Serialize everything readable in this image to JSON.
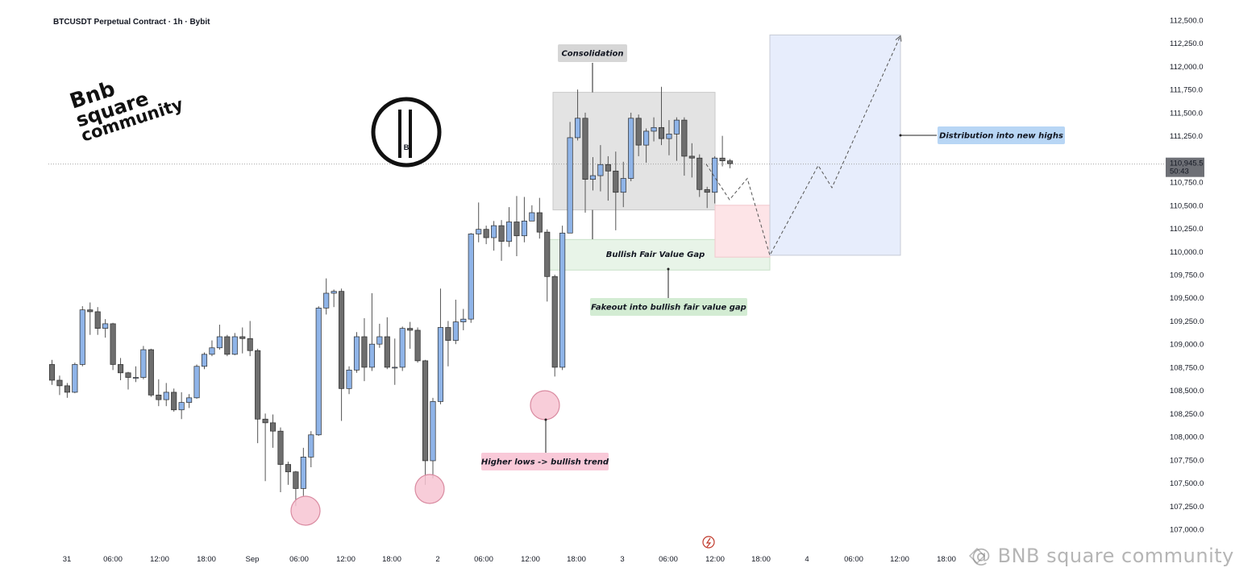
{
  "header": {
    "title": "BTCUSDT Perpetual Contract · 1h · Bybit"
  },
  "price_box": {
    "price": "110,945.5",
    "countdown": "50:43"
  },
  "watermark": "@ BNB square community",
  "logo": {
    "line1": "Bnb",
    "line2": "square",
    "line3": "community"
  },
  "chart_data": {
    "type": "candlestick",
    "ylim": [
      107000,
      112500
    ],
    "yticks": [
      "112,500.0",
      "112,250.0",
      "112,000.0",
      "111,750.0",
      "111,500.0",
      "111,250.0",
      "111,000.0",
      "110,750.0",
      "110,500.0",
      "110,250.0",
      "110,000.0",
      "109,750.0",
      "109,500.0",
      "109,250.0",
      "109,000.0",
      "108,750.0",
      "108,500.0",
      "108,250.0",
      "108,000.0",
      "107,750.0",
      "107,500.0",
      "107,250.0",
      "107,000.0"
    ],
    "xticks": [
      "31",
      "06:00",
      "12:00",
      "18:00",
      "Sep",
      "06:00",
      "12:00",
      "18:00",
      "2",
      "06:00",
      "12:00",
      "18:00",
      "3",
      "06:00",
      "12:00",
      "18:00",
      "4",
      "06:00",
      "12:00",
      "18:00"
    ],
    "candles": [
      [
        108780,
        108610,
        108830,
        108560
      ],
      [
        108610,
        108550,
        108660,
        108450
      ],
      [
        108550,
        108480,
        108580,
        108420
      ],
      [
        108480,
        108780,
        108800,
        108470
      ],
      [
        108780,
        109370,
        109410,
        108760
      ],
      [
        109370,
        109350,
        109450,
        109100
      ],
      [
        109350,
        109170,
        109400,
        109100
      ],
      [
        109170,
        109220,
        109270,
        109070
      ],
      [
        109220,
        108780,
        109230,
        108720
      ],
      [
        108780,
        108690,
        108850,
        108610
      ],
      [
        108690,
        108640,
        108700,
        108510
      ],
      [
        108640,
        108640,
        108760,
        108590
      ],
      [
        108640,
        108940,
        108980,
        108620
      ],
      [
        108940,
        108450,
        108950,
        108430
      ],
      [
        108450,
        108400,
        108620,
        108330
      ],
      [
        108400,
        108480,
        108580,
        108330
      ],
      [
        108480,
        108290,
        108520,
        108270
      ],
      [
        108290,
        108370,
        108480,
        108190
      ],
      [
        108370,
        108420,
        108460,
        108310
      ],
      [
        108420,
        108760,
        108780,
        108410
      ],
      [
        108760,
        108890,
        108910,
        108730
      ],
      [
        108890,
        108960,
        109040,
        108870
      ],
      [
        108960,
        109080,
        109210,
        108940
      ],
      [
        109080,
        108890,
        109100,
        108870
      ],
      [
        108890,
        109080,
        109120,
        108880
      ],
      [
        109080,
        109060,
        109180,
        108900
      ],
      [
        109060,
        108930,
        109250,
        108870
      ],
      [
        108930,
        108190,
        108950,
        107930
      ],
      [
        108190,
        108150,
        108250,
        107520
      ],
      [
        108150,
        108060,
        108240,
        107880
      ],
      [
        108060,
        107700,
        108100,
        107400
      ],
      [
        107700,
        107620,
        107730,
        107480
      ],
      [
        107620,
        107440,
        107630,
        107250
      ],
      [
        107440,
        107780,
        107880,
        107360
      ],
      [
        107780,
        108020,
        108060,
        107670
      ],
      [
        108020,
        109390,
        109410,
        108010
      ],
      [
        109390,
        109550,
        109710,
        109320
      ],
      [
        109550,
        109570,
        109590,
        109400
      ],
      [
        109570,
        108520,
        109600,
        108170
      ],
      [
        108520,
        108720,
        108760,
        108460
      ],
      [
        108720,
        109080,
        109130,
        108690
      ],
      [
        109080,
        108750,
        109280,
        108600
      ],
      [
        108750,
        109000,
        109550,
        108710
      ],
      [
        109000,
        109080,
        109220,
        108960
      ],
      [
        109080,
        108750,
        109290,
        108730
      ],
      [
        108750,
        108750,
        109060,
        108560
      ],
      [
        108750,
        109170,
        109190,
        108710
      ],
      [
        109170,
        109150,
        109240,
        108950
      ],
      [
        109150,
        108820,
        109180,
        108800
      ],
      [
        108820,
        107740,
        108830,
        107480
      ],
      [
        107740,
        108380,
        108420,
        107550
      ],
      [
        108380,
        109180,
        109600,
        108350
      ],
      [
        109180,
        109040,
        109250,
        108760
      ],
      [
        109040,
        109240,
        109480,
        109000
      ],
      [
        109240,
        109270,
        109380,
        109150
      ],
      [
        109270,
        110190,
        110200,
        109230
      ],
      [
        110190,
        110240,
        110530,
        110100
      ],
      [
        110240,
        110150,
        110280,
        110080
      ],
      [
        110150,
        110280,
        110330,
        110010
      ],
      [
        110280,
        110110,
        110340,
        109900
      ],
      [
        110110,
        110320,
        110480,
        110050
      ],
      [
        110320,
        110170,
        110600,
        109950
      ],
      [
        110170,
        110330,
        110590,
        110100
      ],
      [
        110330,
        110420,
        110500,
        110340
      ],
      [
        110420,
        110210,
        110580,
        110140
      ],
      [
        110210,
        109730,
        110240,
        109460
      ],
      [
        109730,
        108750,
        109750,
        108650
      ],
      [
        108750,
        110200,
        110280,
        108720
      ],
      [
        110200,
        111230,
        111400,
        110230
      ],
      [
        111230,
        111440,
        111750,
        111200
      ],
      [
        111440,
        110780,
        111500,
        110420
      ],
      [
        110780,
        110820,
        111020,
        110660
      ],
      [
        110820,
        110940,
        111150,
        110650
      ],
      [
        110940,
        110870,
        111030,
        110550
      ],
      [
        110870,
        110640,
        111080,
        110230
      ],
      [
        110640,
        110790,
        110970,
        110480
      ],
      [
        110790,
        111440,
        111500,
        110760
      ],
      [
        111440,
        111150,
        111480,
        111030
      ],
      [
        111150,
        111300,
        111330,
        110960
      ],
      [
        111300,
        111340,
        111450,
        111190
      ],
      [
        111340,
        111220,
        111780,
        111150
      ],
      [
        111220,
        111270,
        111420,
        111040
      ],
      [
        111270,
        111420,
        111450,
        110980
      ],
      [
        111420,
        111030,
        111450,
        110820
      ],
      [
        111030,
        111010,
        111170,
        110800
      ],
      [
        111010,
        110670,
        111050,
        110590
      ],
      [
        110670,
        110640,
        110700,
        110470
      ],
      [
        110640,
        111010,
        111030,
        110520
      ],
      [
        111010,
        110980,
        111250,
        110920
      ],
      [
        110980,
        110950,
        111000,
        110900
      ]
    ],
    "annotations": [
      "Consolidation",
      "Bullish Fair Value Gap",
      "Fakeout into bullish fair value gap",
      "Higher lows -> bullish trend",
      "Distribution into new highs"
    ],
    "projection": [
      [
        110945,
        110620
      ],
      [
        110780,
        110500
      ],
      [
        110750,
        110000
      ],
      [
        111000,
        110700
      ],
      [
        111040,
        112330
      ]
    ],
    "zones": {
      "consolidation": [
        111720,
        110450
      ],
      "fvg": [
        110130,
        109800
      ],
      "fvg_pink": [
        110500,
        109940
      ],
      "target_box": [
        112340,
        109960
      ]
    },
    "higher_lows": [
      107250,
      107450,
      108500
    ],
    "colors": {
      "up": "#8fb4e8",
      "down": "#6e6e6e",
      "outline": "#2b2b2b"
    }
  }
}
